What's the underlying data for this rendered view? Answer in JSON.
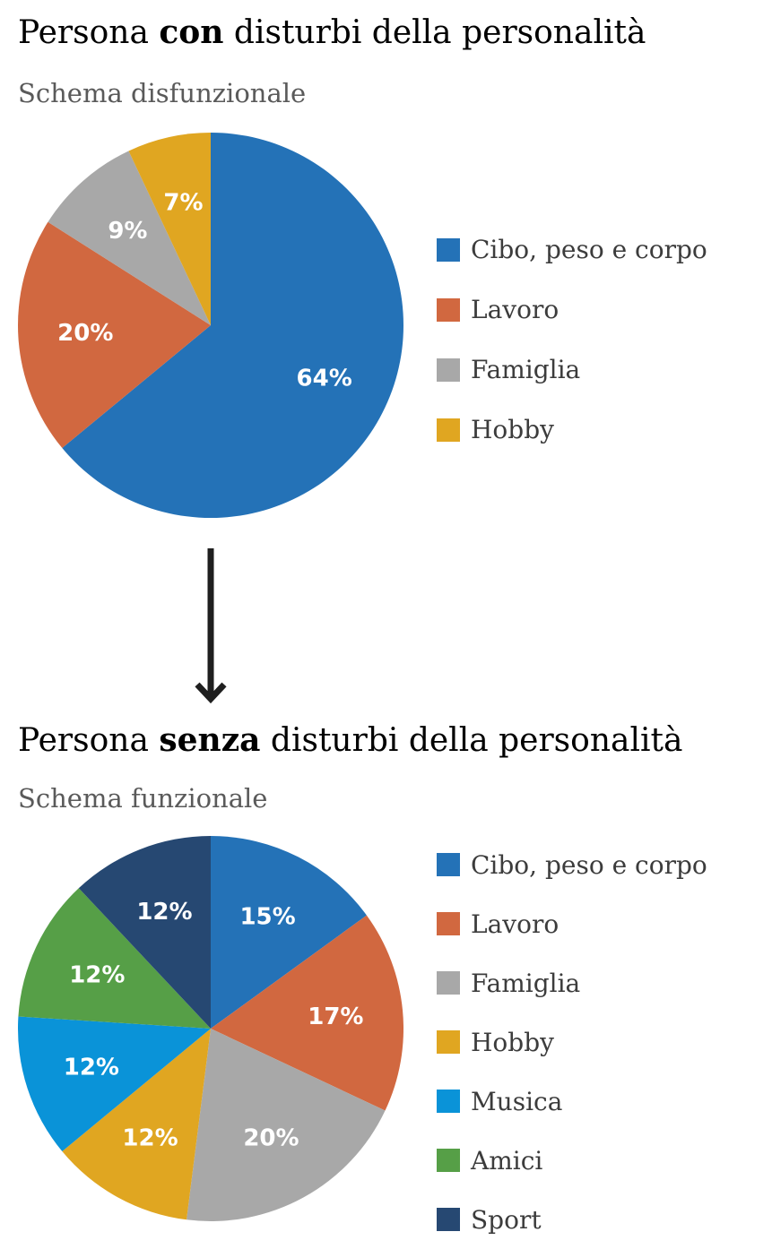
{
  "charts_header": {
    "title1": {
      "before": "Persona ",
      "bold": "con",
      "after": " disturbi della personalità"
    },
    "subtitle1": "Schema disfunzionale",
    "title2": {
      "before": "Persona ",
      "bold": "senza",
      "after": " disturbi della personalità"
    },
    "subtitle2": "Schema funzionale"
  },
  "chart_data": [
    {
      "type": "pie",
      "title": "Persona con disturbi della personalità",
      "subtitle": "Schema disfunzionale",
      "slices": [
        {
          "label": "Cibo, peso e corpo",
          "value": 64,
          "display": "64%",
          "color": "#2472b7"
        },
        {
          "label": "Lavoro",
          "value": 20,
          "display": "20%",
          "color": "#d16840"
        },
        {
          "label": "Famiglia",
          "value": 9,
          "display": "9%",
          "color": "#a8a8a8"
        },
        {
          "label": "Hobby",
          "value": 7,
          "display": "7%",
          "color": "#e0a621"
        }
      ],
      "legend": [
        "Cibo, peso e corpo",
        "Lavoro",
        "Famiglia",
        "Hobby"
      ],
      "legend_position": "right"
    },
    {
      "type": "pie",
      "title": "Persona senza disturbi della personalità",
      "subtitle": "Schema funzionale",
      "slices": [
        {
          "label": "Cibo, peso e corpo",
          "value": 15,
          "display": "15%",
          "color": "#2472b7"
        },
        {
          "label": "Lavoro",
          "value": 17,
          "display": "17%",
          "color": "#d16840"
        },
        {
          "label": "Famiglia",
          "value": 20,
          "display": "20%",
          "color": "#a8a8a8"
        },
        {
          "label": "Hobby",
          "value": 12,
          "display": "12%",
          "color": "#e0a621"
        },
        {
          "label": "Musica",
          "value": 12,
          "display": "12%",
          "color": "#0a93d8"
        },
        {
          "label": "Amici",
          "value": 12,
          "display": "12%",
          "color": "#569f47"
        },
        {
          "label": "Sport",
          "value": 12,
          "display": "12%",
          "color": "#264872"
        }
      ],
      "legend": [
        "Cibo, peso e corpo",
        "Lavoro",
        "Famiglia",
        "Hobby",
        "Musica",
        "Amici",
        "Sport"
      ],
      "legend_position": "right"
    }
  ],
  "arrow": {
    "icon": "arrow-down-icon",
    "color": "#1f1f1f"
  }
}
